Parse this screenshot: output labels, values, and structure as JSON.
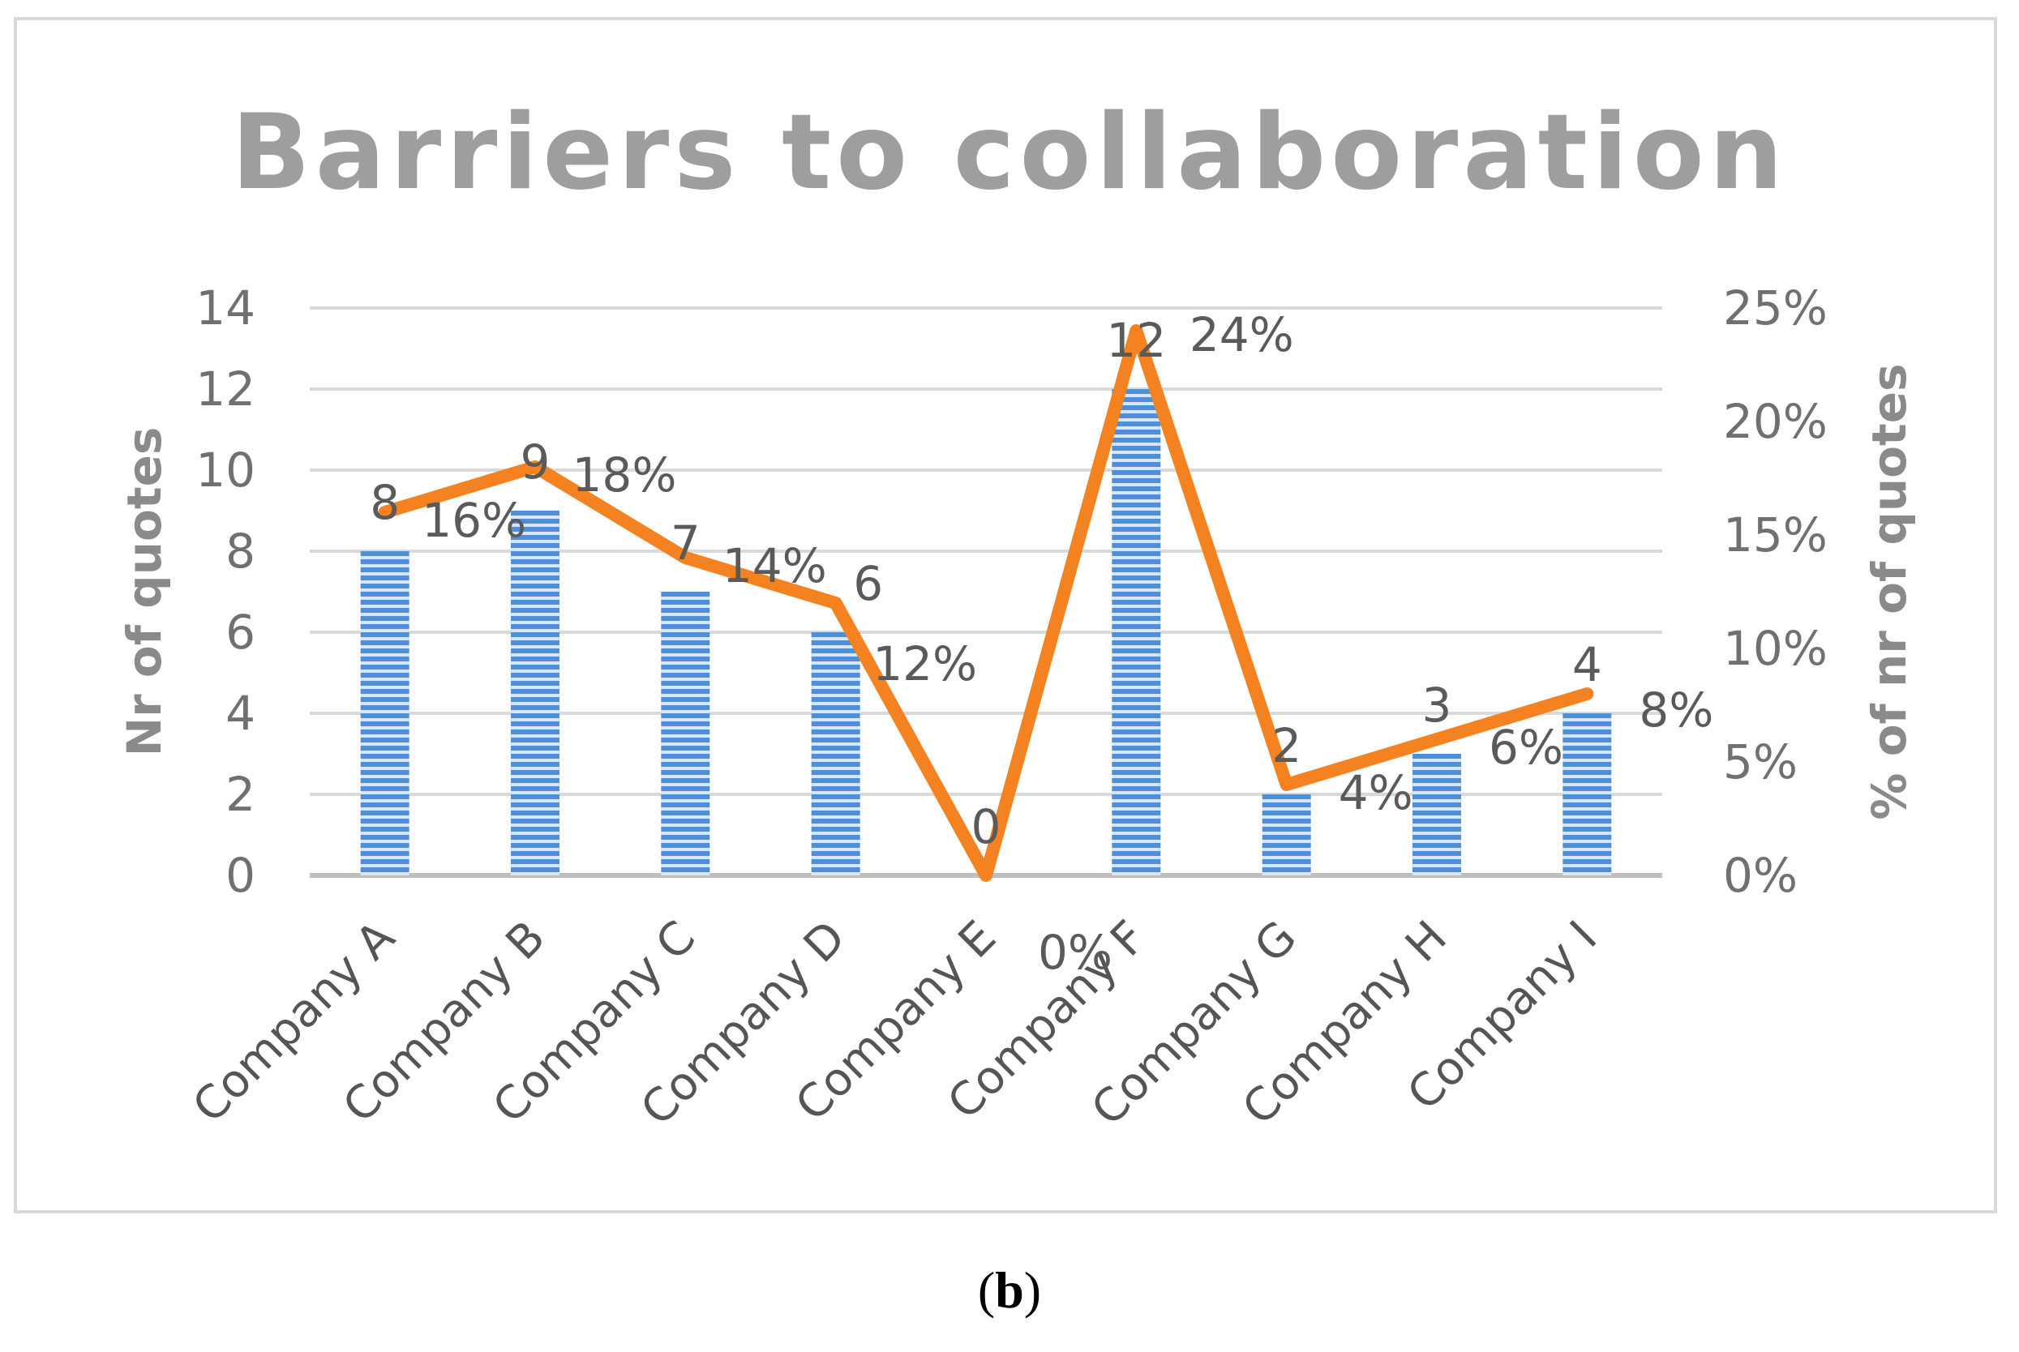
{
  "chart_data": {
    "type": "bar+line",
    "title": "Barriers to collaboration",
    "categories": [
      "Company A",
      "Company B",
      "Company C",
      "Company D",
      "Company E",
      "Company F",
      "Company G",
      "Company H",
      "Company I"
    ],
    "series": [
      {
        "values": [
          8,
          9,
          7,
          6,
          0,
          12,
          2,
          3,
          4
        ],
        "axis": "left",
        "kind": "bar",
        "color": "#4f8fd8"
      },
      {
        "values": [
          16,
          18,
          14,
          12,
          0,
          24,
          4,
          6,
          8
        ],
        "axis": "right",
        "kind": "line",
        "color": "#f58220"
      }
    ],
    "bar_labels": [
      "8",
      "9",
      "7",
      "6",
      "0",
      "12",
      "2",
      "3",
      "4"
    ],
    "line_labels": [
      "16%",
      "18%",
      "14%",
      "12%",
      "0%",
      "24%",
      "4%",
      "6%",
      "8%"
    ],
    "ylabel": "Nr of quotes",
    "y2label": "% of nr of quotes",
    "ylim": [
      0,
      14
    ],
    "yticks": [
      "0",
      "2",
      "4",
      "6",
      "8",
      "10",
      "12",
      "14"
    ],
    "y2lim": [
      0,
      25
    ],
    "y2ticks": [
      "0%",
      "5%",
      "10%",
      "15%",
      "20%",
      "25%"
    ],
    "grid": true
  },
  "caption": {
    "open": "(",
    "letter": "b",
    "close": ")"
  }
}
